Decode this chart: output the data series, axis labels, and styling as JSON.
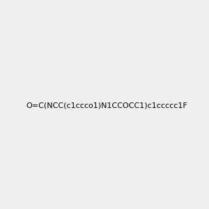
{
  "smiles": "O=C(NCC(c1ccco1)N1CCOCC1)c1ccccc1F",
  "image_size": 300,
  "background_color": "#f0f0f0",
  "title": ""
}
